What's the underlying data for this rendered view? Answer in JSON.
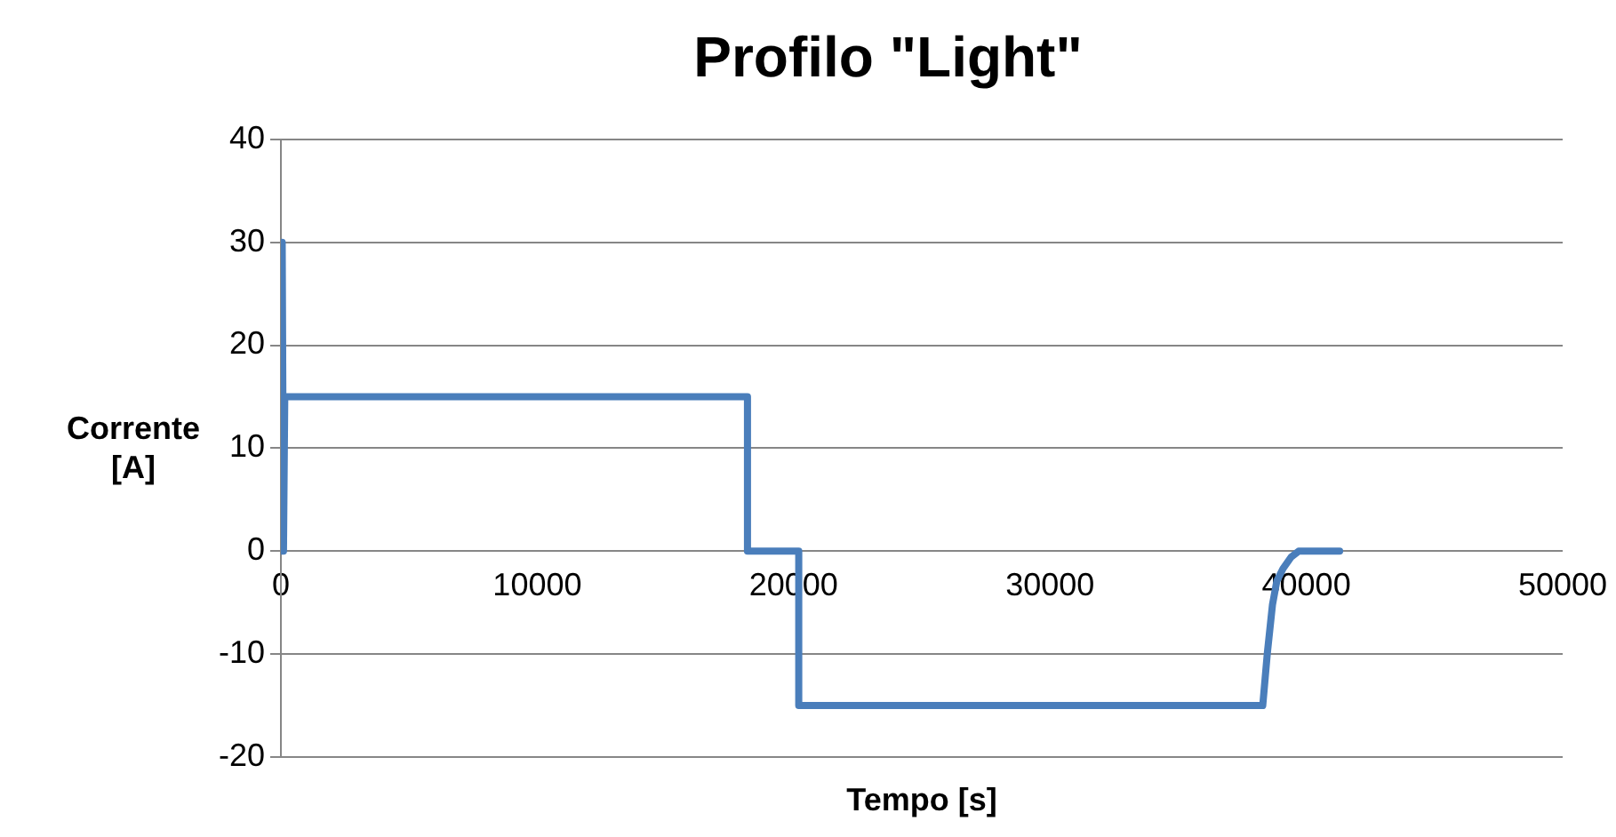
{
  "chart_data": {
    "type": "line",
    "title": "Profilo \"Light\"",
    "xlabel": "Tempo [s]",
    "ylabel": "Corrente [A]",
    "x": [
      0,
      50,
      100,
      150,
      18200,
      18200,
      20200,
      20200,
      38300,
      38480,
      38680,
      38850,
      39090,
      39400,
      39700,
      41300
    ],
    "series": [
      {
        "color": "#4a7ebb",
        "values": [
          0,
          30,
          0,
          15,
          15,
          0,
          0,
          -15,
          -15,
          -9.9,
          -5.2,
          -2.9,
          -1.7,
          -0.6,
          0,
          0
        ]
      }
    ],
    "xlim": [
      0,
      50000
    ],
    "xticks": [
      0,
      10000,
      20000,
      30000,
      40000,
      50000
    ],
    "ylim": [
      -20,
      40
    ],
    "yticks": [
      -20,
      -10,
      0,
      10,
      20,
      30,
      40
    ],
    "grid": "y",
    "legend": false,
    "marker": "none",
    "line_style": "solid"
  }
}
